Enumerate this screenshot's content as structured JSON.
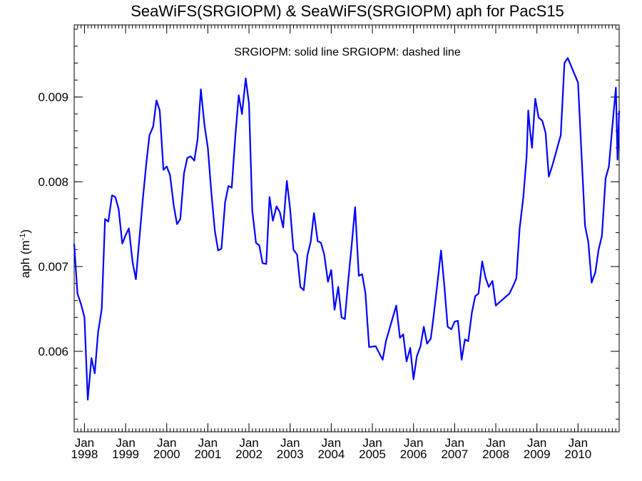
{
  "chart_data": {
    "type": "line",
    "title": "SeaWiFS(SRGIOPM) & SeaWiFS(SRGIOPM)  aph for PacS15",
    "annotation": "SRGIOPM: solid line   SRGIOPM: dashed line",
    "ylabel_main": "aph (m",
    "ylabel_sup": "-1",
    "ylabel_close": ")",
    "xlim": [
      1997.75,
      2011.0
    ],
    "ylim": [
      0.00505,
      0.00985
    ],
    "y_ticks": [
      0.006,
      0.007,
      0.008,
      0.009
    ],
    "y_tick_labels": [
      "0.006",
      "0.007",
      "0.008",
      "0.009"
    ],
    "x_ticks": [
      1998,
      1999,
      2000,
      2001,
      2002,
      2003,
      2004,
      2005,
      2006,
      2007,
      2008,
      2009,
      2010
    ],
    "x_tick_month": "Jan",
    "x_tick_years": [
      "1998",
      "1999",
      "2000",
      "2001",
      "2002",
      "2003",
      "2004",
      "2005",
      "2006",
      "2007",
      "2008",
      "2009",
      "2010"
    ],
    "line_color": "#0000ff",
    "series": [
      {
        "style": "solid",
        "points": [
          [
            1997.75,
            0.00726
          ],
          [
            1997.83,
            0.00668
          ],
          [
            1997.92,
            0.00655
          ],
          [
            1998.0,
            0.0064
          ],
          [
            1998.08,
            0.00543
          ],
          [
            1998.17,
            0.00592
          ],
          [
            1998.25,
            0.00574
          ],
          [
            1998.33,
            0.00622
          ],
          [
            1998.42,
            0.0065
          ],
          [
            1998.5,
            0.00756
          ],
          [
            1998.58,
            0.00753
          ],
          [
            1998.67,
            0.00784
          ],
          [
            1998.75,
            0.00782
          ],
          [
            1998.83,
            0.00768
          ],
          [
            1998.92,
            0.00727
          ],
          [
            1999.0,
            0.00737
          ],
          [
            1999.08,
            0.00745
          ],
          [
            1999.17,
            0.00705
          ],
          [
            1999.25,
            0.00685
          ],
          [
            1999.33,
            0.0073
          ],
          [
            1999.42,
            0.0078
          ],
          [
            1999.5,
            0.0082
          ],
          [
            1999.58,
            0.00855
          ],
          [
            1999.67,
            0.00865
          ],
          [
            1999.75,
            0.00896
          ],
          [
            1999.83,
            0.00884
          ],
          [
            1999.92,
            0.00814
          ],
          [
            2000.0,
            0.00818
          ],
          [
            2000.08,
            0.00808
          ],
          [
            2000.17,
            0.00772
          ],
          [
            2000.25,
            0.0075
          ],
          [
            2000.33,
            0.00756
          ],
          [
            2000.42,
            0.0081
          ],
          [
            2000.5,
            0.00828
          ],
          [
            2000.58,
            0.0083
          ],
          [
            2000.67,
            0.00825
          ],
          [
            2000.75,
            0.0085
          ],
          [
            2000.83,
            0.00909
          ],
          [
            2000.92,
            0.00866
          ],
          [
            2001.0,
            0.0084
          ],
          [
            2001.08,
            0.0079
          ],
          [
            2001.17,
            0.00742
          ],
          [
            2001.25,
            0.00719
          ],
          [
            2001.33,
            0.00721
          ],
          [
            2001.42,
            0.00776
          ],
          [
            2001.5,
            0.00795
          ],
          [
            2001.58,
            0.00793
          ],
          [
            2001.67,
            0.00855
          ],
          [
            2001.75,
            0.00902
          ],
          [
            2001.83,
            0.0088
          ],
          [
            2001.92,
            0.00922
          ],
          [
            2002.0,
            0.00892
          ],
          [
            2002.08,
            0.00766
          ],
          [
            2002.17,
            0.00728
          ],
          [
            2002.25,
            0.00725
          ],
          [
            2002.33,
            0.00704
          ],
          [
            2002.42,
            0.00703
          ],
          [
            2002.5,
            0.00782
          ],
          [
            2002.58,
            0.00754
          ],
          [
            2002.67,
            0.00771
          ],
          [
            2002.75,
            0.00764
          ],
          [
            2002.83,
            0.00746
          ],
          [
            2002.92,
            0.00801
          ],
          [
            2003.0,
            0.00768
          ],
          [
            2003.08,
            0.0072
          ],
          [
            2003.17,
            0.00714
          ],
          [
            2003.25,
            0.00676
          ],
          [
            2003.33,
            0.00672
          ],
          [
            2003.42,
            0.00713
          ],
          [
            2003.5,
            0.00729
          ],
          [
            2003.58,
            0.00763
          ],
          [
            2003.67,
            0.0073
          ],
          [
            2003.75,
            0.00728
          ],
          [
            2003.83,
            0.00714
          ],
          [
            2003.92,
            0.00682
          ],
          [
            2004.0,
            0.00696
          ],
          [
            2004.08,
            0.00649
          ],
          [
            2004.17,
            0.00676
          ],
          [
            2004.25,
            0.0064
          ],
          [
            2004.33,
            0.00638
          ],
          [
            2004.42,
            0.00687
          ],
          [
            2004.5,
            0.00727
          ],
          [
            2004.58,
            0.0077
          ],
          [
            2004.67,
            0.00689
          ],
          [
            2004.75,
            0.00691
          ],
          [
            2004.83,
            0.00669
          ],
          [
            2004.92,
            0.00605
          ],
          [
            2005.08,
            0.00606
          ],
          [
            2005.25,
            0.0059
          ],
          [
            2005.33,
            0.00612
          ],
          [
            2005.58,
            0.00654
          ],
          [
            2005.67,
            0.00616
          ],
          [
            2005.75,
            0.0062
          ],
          [
            2005.83,
            0.00588
          ],
          [
            2005.92,
            0.00604
          ],
          [
            2006.0,
            0.00567
          ],
          [
            2006.08,
            0.00594
          ],
          [
            2006.17,
            0.00606
          ],
          [
            2006.25,
            0.00629
          ],
          [
            2006.33,
            0.00609
          ],
          [
            2006.42,
            0.00615
          ],
          [
            2006.5,
            0.00646
          ],
          [
            2006.58,
            0.0068
          ],
          [
            2006.67,
            0.00719
          ],
          [
            2006.75,
            0.00677
          ],
          [
            2006.83,
            0.00629
          ],
          [
            2006.92,
            0.00626
          ],
          [
            2007.0,
            0.00635
          ],
          [
            2007.08,
            0.00636
          ],
          [
            2007.17,
            0.0059
          ],
          [
            2007.25,
            0.00614
          ],
          [
            2007.33,
            0.00612
          ],
          [
            2007.42,
            0.00646
          ],
          [
            2007.5,
            0.00665
          ],
          [
            2007.58,
            0.00668
          ],
          [
            2007.67,
            0.00706
          ],
          [
            2007.75,
            0.00687
          ],
          [
            2007.83,
            0.00676
          ],
          [
            2007.92,
            0.00683
          ],
          [
            2008.0,
            0.00654
          ],
          [
            2008.33,
            0.00668
          ],
          [
            2008.42,
            0.00677
          ],
          [
            2008.5,
            0.00686
          ],
          [
            2008.58,
            0.00745
          ],
          [
            2008.67,
            0.00782
          ],
          [
            2008.75,
            0.0083
          ],
          [
            2008.79,
            0.00884
          ],
          [
            2008.83,
            0.00862
          ],
          [
            2008.88,
            0.0084
          ],
          [
            2008.96,
            0.00898
          ],
          [
            2009.04,
            0.00876
          ],
          [
            2009.13,
            0.00872
          ],
          [
            2009.21,
            0.00858
          ],
          [
            2009.29,
            0.00806
          ],
          [
            2009.38,
            0.0082
          ],
          [
            2009.58,
            0.00855
          ],
          [
            2009.67,
            0.0094
          ],
          [
            2009.75,
            0.00946
          ],
          [
            2010.0,
            0.00917
          ],
          [
            2010.08,
            0.00837
          ],
          [
            2010.17,
            0.00748
          ],
          [
            2010.25,
            0.00729
          ],
          [
            2010.33,
            0.00681
          ],
          [
            2010.42,
            0.00693
          ],
          [
            2010.5,
            0.0072
          ],
          [
            2010.58,
            0.00736
          ],
          [
            2010.67,
            0.00804
          ],
          [
            2010.75,
            0.00818
          ],
          [
            2010.83,
            0.00863
          ],
          [
            2010.92,
            0.00911
          ],
          [
            2010.96,
            0.00826
          ],
          [
            2011.0,
            0.00883
          ]
        ]
      }
    ]
  }
}
